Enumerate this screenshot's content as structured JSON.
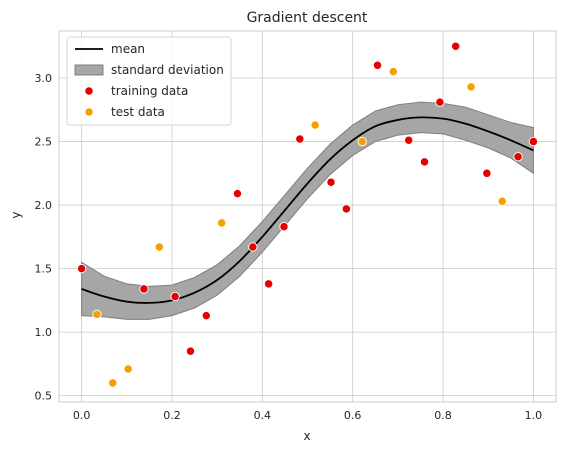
{
  "chart_data": {
    "type": "line",
    "title": "Gradient descent",
    "xlabel": "x",
    "ylabel": "y",
    "xlim": [
      -0.05,
      1.05
    ],
    "ylim": [
      0.45,
      3.37
    ],
    "xticks": [
      0.0,
      0.2,
      0.4,
      0.6,
      0.8,
      1.0
    ],
    "xtick_labels": [
      "0.0",
      "0.2",
      "0.4",
      "0.6",
      "0.8",
      "1.0"
    ],
    "yticks": [
      0.5,
      1.0,
      1.5,
      2.0,
      2.5,
      3.0
    ],
    "ytick_labels": [
      "0.5",
      "1.0",
      "1.5",
      "2.0",
      "2.5",
      "3.0"
    ],
    "grid": true,
    "legend_position": "top-left",
    "legend": [
      {
        "label": "mean",
        "kind": "line",
        "color": "#000000"
      },
      {
        "label": "standard deviation",
        "kind": "band",
        "color": "#808080"
      },
      {
        "label": "training data",
        "kind": "point",
        "color": "#e60000"
      },
      {
        "label": "test data",
        "kind": "point",
        "color": "#f5a000"
      }
    ],
    "mean": {
      "x": [
        0.0,
        0.05,
        0.1,
        0.15,
        0.2,
        0.25,
        0.3,
        0.35,
        0.4,
        0.45,
        0.5,
        0.55,
        0.6,
        0.65,
        0.7,
        0.75,
        0.8,
        0.85,
        0.9,
        0.95,
        1.0
      ],
      "y": [
        1.34,
        1.28,
        1.24,
        1.23,
        1.25,
        1.31,
        1.41,
        1.56,
        1.75,
        1.96,
        2.17,
        2.36,
        2.51,
        2.62,
        2.67,
        2.69,
        2.68,
        2.64,
        2.58,
        2.51,
        2.43
      ]
    },
    "std_band": {
      "x": [
        0.0,
        0.05,
        0.1,
        0.15,
        0.2,
        0.25,
        0.3,
        0.35,
        0.4,
        0.45,
        0.5,
        0.55,
        0.6,
        0.65,
        0.7,
        0.75,
        0.8,
        0.85,
        0.9,
        0.95,
        1.0
      ],
      "upper": [
        1.55,
        1.44,
        1.38,
        1.36,
        1.37,
        1.43,
        1.53,
        1.68,
        1.87,
        2.08,
        2.29,
        2.48,
        2.63,
        2.74,
        2.79,
        2.81,
        2.8,
        2.77,
        2.71,
        2.65,
        2.61
      ],
      "lower": [
        1.13,
        1.12,
        1.1,
        1.1,
        1.13,
        1.19,
        1.29,
        1.44,
        1.63,
        1.84,
        2.05,
        2.24,
        2.39,
        2.5,
        2.55,
        2.57,
        2.56,
        2.51,
        2.45,
        2.37,
        2.25
      ]
    },
    "training_data": {
      "x": [
        0.0,
        0.138,
        0.207,
        0.241,
        0.276,
        0.345,
        0.379,
        0.414,
        0.448,
        0.483,
        0.552,
        0.586,
        0.655,
        0.724,
        0.759,
        0.793,
        0.828,
        0.897,
        0.966,
        1.0
      ],
      "y": [
        1.5,
        1.34,
        1.28,
        0.85,
        1.13,
        2.09,
        1.67,
        1.38,
        1.83,
        2.52,
        2.18,
        1.97,
        3.1,
        2.51,
        2.34,
        2.81,
        3.25,
        2.25,
        2.38,
        2.5
      ]
    },
    "test_data": {
      "x": [
        0.034,
        0.069,
        0.103,
        0.172,
        0.31,
        0.517,
        0.621,
        0.69,
        0.862,
        0.931
      ],
      "y": [
        1.14,
        0.6,
        0.71,
        1.67,
        1.86,
        2.63,
        2.5,
        3.05,
        2.93,
        2.03
      ]
    },
    "colors": {
      "mean": "#000000",
      "band_fill": "#a6a6a6",
      "band_edge": "#7f7f7f",
      "training": "#e60000",
      "test": "#f5a000",
      "grid": "#cccccc",
      "spine": "#cccccc"
    }
  }
}
